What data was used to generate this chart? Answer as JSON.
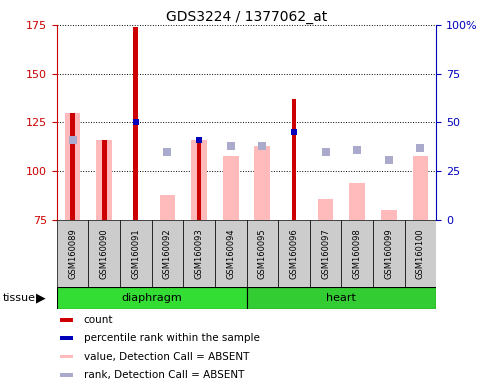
{
  "title": "GDS3224 / 1377062_at",
  "samples": [
    "GSM160089",
    "GSM160090",
    "GSM160091",
    "GSM160092",
    "GSM160093",
    "GSM160094",
    "GSM160095",
    "GSM160096",
    "GSM160097",
    "GSM160098",
    "GSM160099",
    "GSM160100"
  ],
  "count_values": [
    130,
    116,
    174,
    null,
    116,
    null,
    null,
    137,
    null,
    null,
    null,
    null
  ],
  "percentile_rank_values": [
    null,
    null,
    125,
    null,
    116,
    null,
    null,
    120,
    null,
    null,
    null,
    null
  ],
  "value_absent": [
    130,
    116,
    null,
    88,
    116,
    108,
    113,
    null,
    86,
    94,
    80,
    108
  ],
  "rank_absent": [
    116,
    null,
    null,
    110,
    null,
    113,
    113,
    null,
    110,
    111,
    106,
    112
  ],
  "ylim_left": [
    75,
    175
  ],
  "ylim_right": [
    0,
    100
  ],
  "yticks_left": [
    75,
    100,
    125,
    150,
    175
  ],
  "ytick_labels_left": [
    "75",
    "100",
    "125",
    "150",
    "175"
  ],
  "yticks_right": [
    0,
    25,
    50,
    75,
    100
  ],
  "ytick_labels_right": [
    "0",
    "25",
    "50",
    "75",
    "100%"
  ],
  "color_count": "#cc0000",
  "color_rank": "#0000bb",
  "color_value_absent": "#ffbbbb",
  "color_rank_absent": "#aaaacc",
  "color_diaphragm_light": "#bbffbb",
  "color_diaphragm_dark": "#33dd33",
  "color_heart_dark": "#33cc33",
  "color_left_axis": "#cc0000",
  "color_right_axis": "#0000bb",
  "color_gray_bg": "#cccccc",
  "diaphragm_count": 6,
  "heart_count": 6
}
